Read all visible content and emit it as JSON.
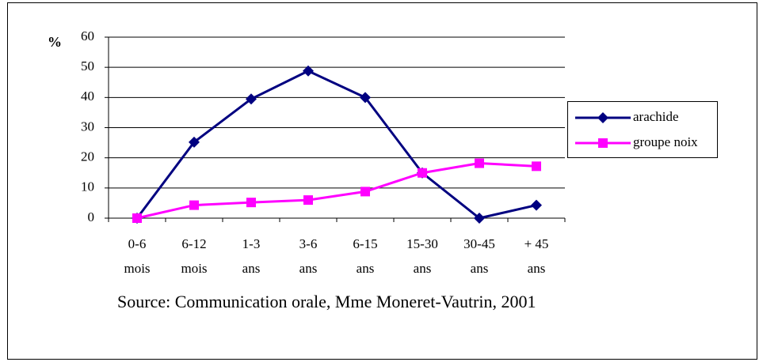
{
  "chart_data": {
    "type": "line",
    "y_label": "%",
    "source": "Source: Communication orale, Mme Moneret-Vautrin, 2001",
    "categories": [
      [
        "0-6",
        "mois"
      ],
      [
        "6-12",
        "mois"
      ],
      [
        "1-3",
        "ans"
      ],
      [
        "3-6",
        "ans"
      ],
      [
        "6-15",
        "ans"
      ],
      [
        "15-30",
        "ans"
      ],
      [
        "30-45",
        "ans"
      ],
      [
        "+ 45",
        "ans"
      ]
    ],
    "series": [
      {
        "name": "arachide",
        "color": "#000080",
        "marker": "diamond",
        "values": [
          0,
          25.2,
          39.5,
          48.8,
          40,
          15,
          0,
          4.3
        ]
      },
      {
        "name": "groupe noix",
        "color": "#ff00ff",
        "marker": "square",
        "values": [
          0,
          4.3,
          5.2,
          6,
          8.8,
          15,
          18.2,
          17.2
        ]
      }
    ],
    "ylim": [
      0,
      60
    ],
    "yticks": [
      0,
      10,
      20,
      30,
      40,
      50,
      60
    ],
    "grid": true,
    "legend": "right"
  }
}
